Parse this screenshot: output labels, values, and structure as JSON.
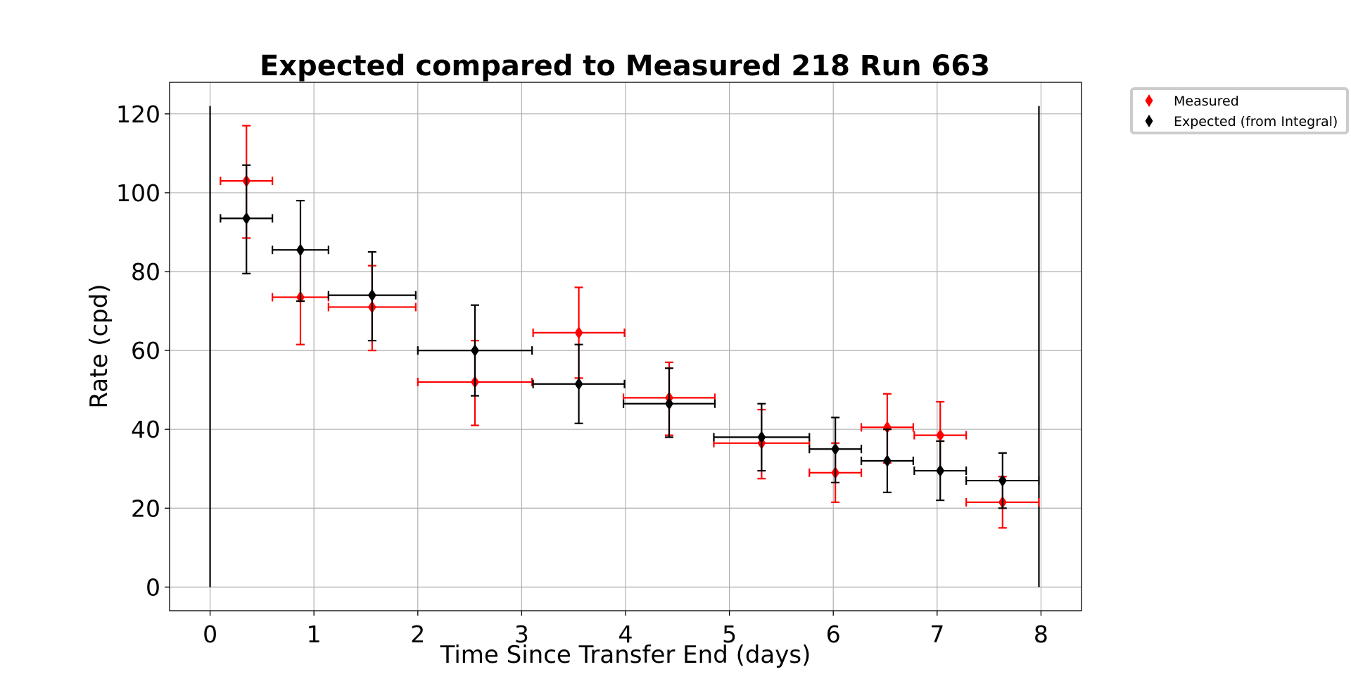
{
  "chart_data": {
    "type": "scatter",
    "title": "Expected compared to Measured 218 Run 663",
    "xlabel": "Time Since Transfer End (days)",
    "ylabel": "Rate (cpd)",
    "xlim": [
      -0.39,
      8.39
    ],
    "ylim": [
      -6,
      128
    ],
    "x_ticks": [
      0,
      1,
      2,
      3,
      4,
      5,
      6,
      7,
      8
    ],
    "x_tick_labels": [
      "0",
      "1",
      "2",
      "3",
      "4",
      "5",
      "6",
      "7",
      "8"
    ],
    "y_ticks": [
      0,
      20,
      40,
      60,
      80,
      100,
      120
    ],
    "y_tick_labels": [
      "0",
      "20",
      "40",
      "60",
      "80",
      "100",
      "120"
    ],
    "grid": true,
    "legend_position": "outside-top-right",
    "vertical_lines": [
      {
        "x": 0,
        "y_from": 0,
        "y_to": 122,
        "color": "#000000"
      },
      {
        "x": 7.98,
        "y_from": 0,
        "y_to": 122,
        "color": "#000000"
      }
    ],
    "series": [
      {
        "name": "Measured",
        "color": "#ff0000",
        "marker": "diamond",
        "points": [
          {
            "x": 0.35,
            "y": 103,
            "xerr_low": 0.25,
            "xerr_high": 0.25,
            "yerr_low": 14.5,
            "yerr_high": 14
          },
          {
            "x": 0.87,
            "y": 73.5,
            "xerr_low": 0.27,
            "xerr_high": 0.27,
            "yerr_low": 12,
            "yerr_high": 12
          },
          {
            "x": 1.56,
            "y": 71,
            "xerr_low": 0.42,
            "xerr_high": 0.42,
            "yerr_low": 11,
            "yerr_high": 10.5
          },
          {
            "x": 2.55,
            "y": 52,
            "xerr_low": 0.55,
            "xerr_high": 0.55,
            "yerr_low": 11,
            "yerr_high": 10.5
          },
          {
            "x": 3.55,
            "y": 64.5,
            "xerr_low": 0.44,
            "xerr_high": 0.44,
            "yerr_low": 11.5,
            "yerr_high": 11.5
          },
          {
            "x": 4.42,
            "y": 48,
            "xerr_low": 0.44,
            "xerr_high": 0.44,
            "yerr_low": 9.5,
            "yerr_high": 9
          },
          {
            "x": 5.31,
            "y": 36.5,
            "xerr_low": 0.46,
            "xerr_high": 0.46,
            "yerr_low": 9,
            "yerr_high": 8.5
          },
          {
            "x": 6.02,
            "y": 29,
            "xerr_low": 0.25,
            "xerr_high": 0.25,
            "yerr_low": 7.5,
            "yerr_high": 7.5
          },
          {
            "x": 6.52,
            "y": 40.5,
            "xerr_low": 0.25,
            "xerr_high": 0.25,
            "yerr_low": 9,
            "yerr_high": 8.5
          },
          {
            "x": 7.03,
            "y": 38.5,
            "xerr_low": 0.25,
            "xerr_high": 0.25,
            "yerr_low": 9,
            "yerr_high": 8.5
          },
          {
            "x": 7.63,
            "y": 21.5,
            "xerr_low": 0.35,
            "xerr_high": 0.35,
            "yerr_low": 6.5,
            "yerr_high": 6.5
          }
        ]
      },
      {
        "name": "Expected (from Integral)",
        "color": "#000000",
        "marker": "diamond",
        "points": [
          {
            "x": 0.35,
            "y": 93.5,
            "xerr_low": 0.25,
            "xerr_high": 0.25,
            "yerr_low": 14,
            "yerr_high": 13.5
          },
          {
            "x": 0.87,
            "y": 85.5,
            "xerr_low": 0.27,
            "xerr_high": 0.27,
            "yerr_low": 13,
            "yerr_high": 12.5
          },
          {
            "x": 1.56,
            "y": 74,
            "xerr_low": 0.42,
            "xerr_high": 0.42,
            "yerr_low": 11.5,
            "yerr_high": 11
          },
          {
            "x": 2.55,
            "y": 60,
            "xerr_low": 0.55,
            "xerr_high": 0.55,
            "yerr_low": 11.5,
            "yerr_high": 11.5
          },
          {
            "x": 3.55,
            "y": 51.5,
            "xerr_low": 0.44,
            "xerr_high": 0.44,
            "yerr_low": 10,
            "yerr_high": 10
          },
          {
            "x": 4.42,
            "y": 46.5,
            "xerr_low": 0.44,
            "xerr_high": 0.44,
            "yerr_low": 8.5,
            "yerr_high": 9
          },
          {
            "x": 5.31,
            "y": 38,
            "xerr_low": 0.46,
            "xerr_high": 0.46,
            "yerr_low": 8.5,
            "yerr_high": 8.5
          },
          {
            "x": 6.02,
            "y": 35,
            "xerr_low": 0.25,
            "xerr_high": 0.25,
            "yerr_low": 8.5,
            "yerr_high": 8
          },
          {
            "x": 6.52,
            "y": 32,
            "xerr_low": 0.25,
            "xerr_high": 0.25,
            "yerr_low": 8,
            "yerr_high": 8
          },
          {
            "x": 7.03,
            "y": 29.5,
            "xerr_low": 0.25,
            "xerr_high": 0.25,
            "yerr_low": 7.5,
            "yerr_high": 7.5
          },
          {
            "x": 7.63,
            "y": 27,
            "xerr_low": 0.35,
            "xerr_high": 0.35,
            "yerr_low": 7,
            "yerr_high": 7
          }
        ]
      }
    ]
  }
}
